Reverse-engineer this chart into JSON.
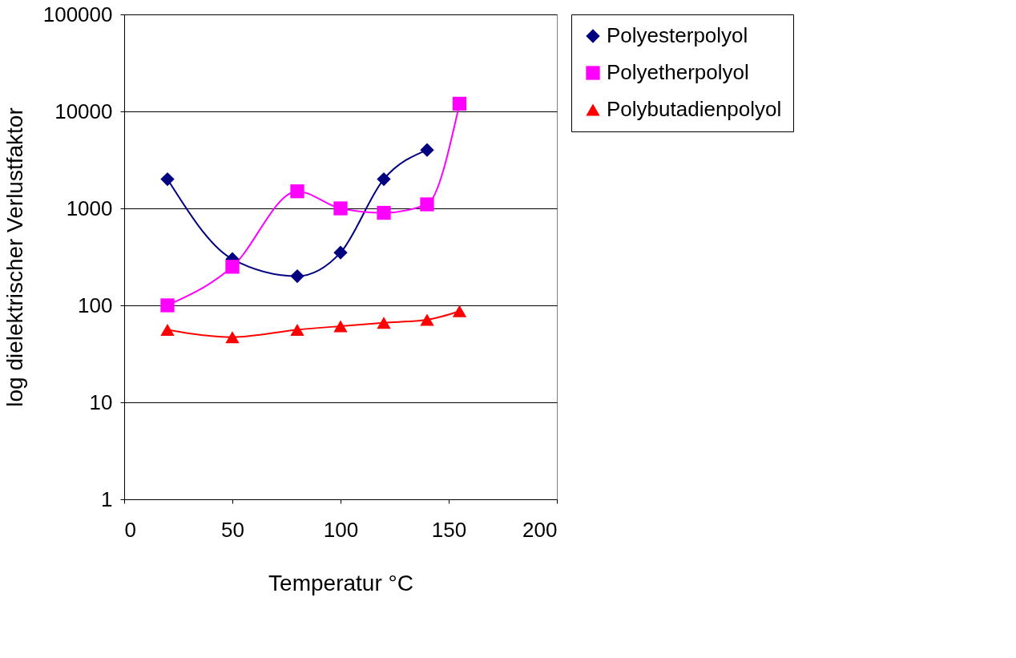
{
  "chart_data": {
    "type": "line",
    "xlabel": "Temperatur °C",
    "ylabel": "log dielektrischer Verlustfaktor",
    "log": true,
    "xlim": [
      0,
      200
    ],
    "xticks": [
      0,
      50,
      100,
      150,
      200
    ],
    "ylim": [
      1,
      100000
    ],
    "yticks": [
      1,
      10,
      100,
      1000,
      10000,
      100000
    ],
    "grid": "y",
    "legend": "right",
    "line_style": "solid",
    "series": [
      {
        "name": "Polyesterpolyol",
        "color": "#000080",
        "marker": "diamond",
        "x": [
          20,
          50,
          80,
          100,
          120,
          140
        ],
        "values": [
          2000,
          300,
          200,
          350,
          2000,
          4000
        ]
      },
      {
        "name": "Polyetherpolyol",
        "color": "#ff00ff",
        "marker": "square",
        "x": [
          20,
          50,
          80,
          100,
          120,
          140,
          155
        ],
        "values": [
          100,
          250,
          1500,
          1000,
          900,
          1100,
          12000
        ]
      },
      {
        "name": "Polybutadienpolyol",
        "color": "#ff0000",
        "marker": "triangle",
        "x": [
          20,
          50,
          80,
          100,
          120,
          140,
          155
        ],
        "values": [
          56,
          47,
          56,
          61,
          66,
          71,
          87
        ]
      }
    ]
  }
}
